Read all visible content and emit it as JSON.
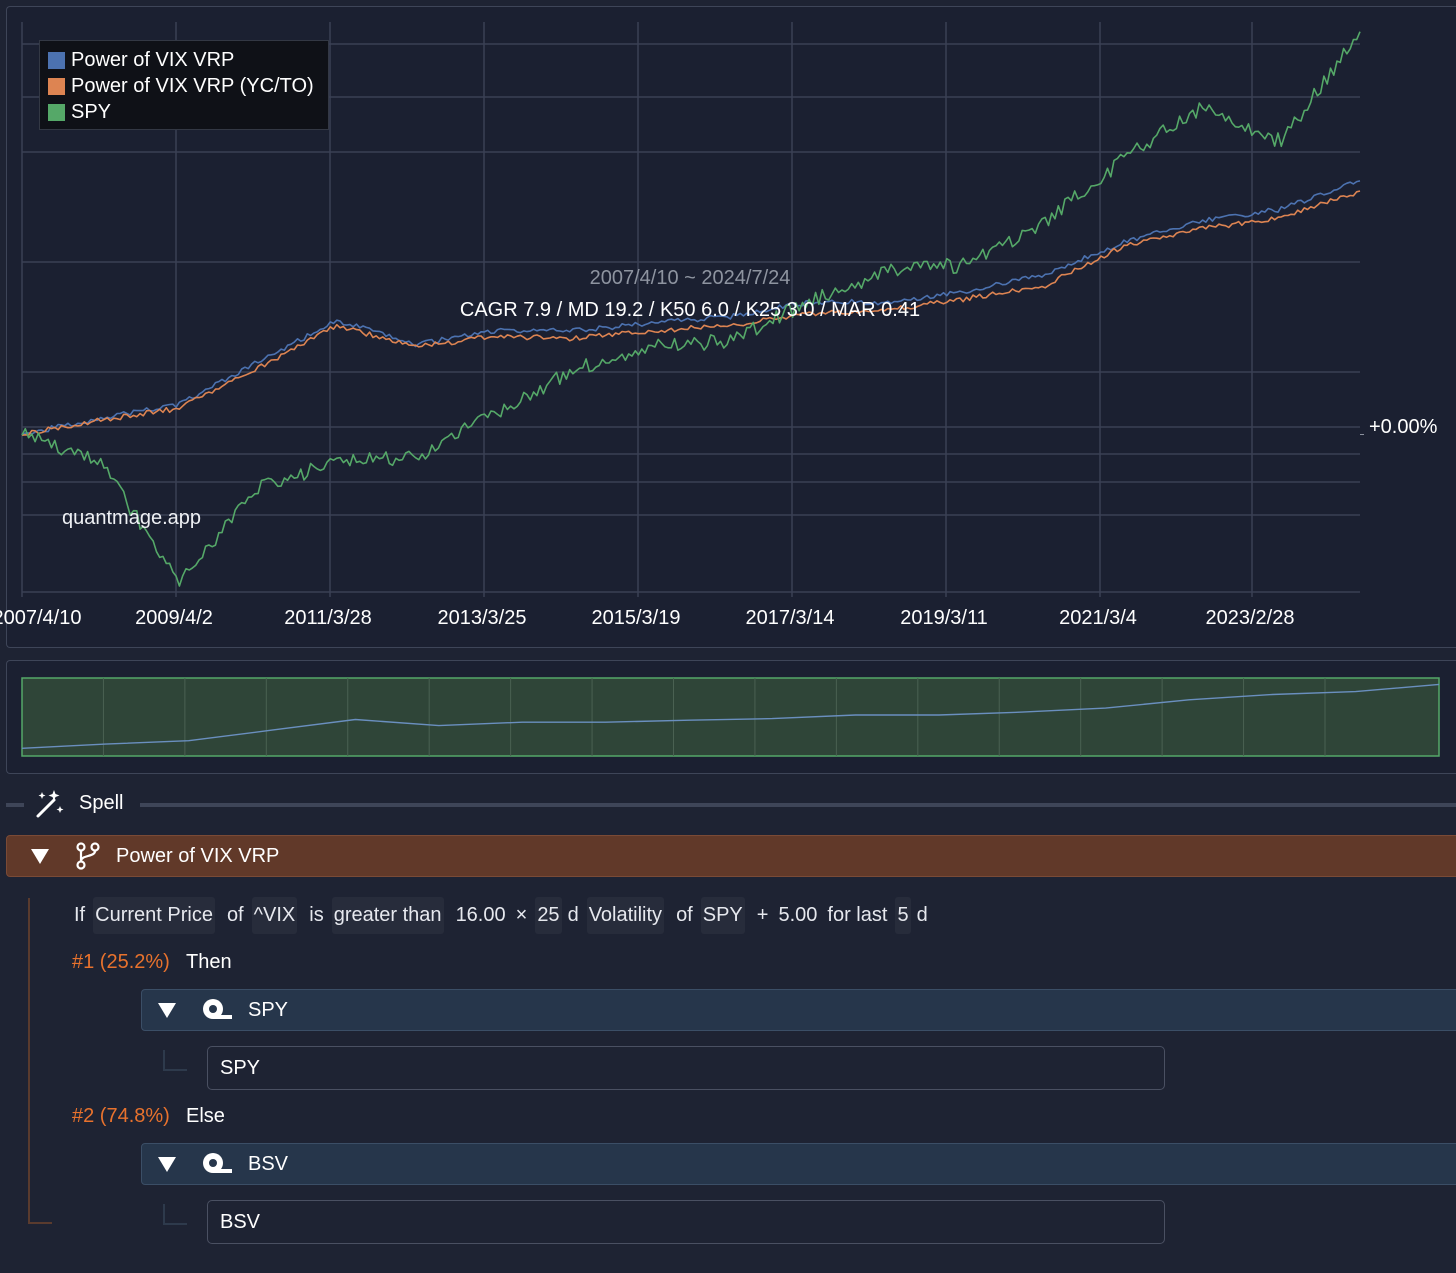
{
  "chart": {
    "legend": [
      {
        "name": "Power of VIX VRP",
        "color": "#4c72b0"
      },
      {
        "name": "Power of VIX VRP (YC/TO)",
        "color": "#dd8452"
      },
      {
        "name": "SPY",
        "color": "#55a868"
      }
    ],
    "date_range": "2007/4/10 ~ 2024/7/24",
    "stats": "CAGR 7.9 / MD 19.2 / K50 6.0 / K25 3.0 / MAR 0.41",
    "watermark": "quantmage.app",
    "y_label": "+0.00%",
    "x_ticks": [
      "2007/4/10",
      "2009/4/2",
      "2011/3/28",
      "2013/3/25",
      "2015/3/19",
      "2017/3/14",
      "2019/3/11",
      "2021/3/4",
      "2023/2/28"
    ]
  },
  "chart_data": {
    "type": "line",
    "title": "",
    "y_scale": "log",
    "x": [
      "2007/4/10",
      "2008/3/1",
      "2009/3/1",
      "2010/3/1",
      "2011/4/1",
      "2012/1/1",
      "2013/1/1",
      "2014/1/1",
      "2015/1/1",
      "2016/1/1",
      "2017/1/1",
      "2018/1/1",
      "2019/1/1",
      "2020/3/1",
      "2021/1/1",
      "2022/1/1",
      "2023/1/1",
      "2024/7/24"
    ],
    "series": [
      {
        "name": "Power of VIX VRP",
        "color": "#4c72b0",
        "values": [
          1.0,
          1.08,
          1.15,
          1.4,
          1.7,
          1.52,
          1.62,
          1.62,
          1.68,
          1.73,
          1.85,
          1.85,
          1.95,
          2.1,
          2.45,
          2.7,
          2.85,
          3.25
        ]
      },
      {
        "name": "Power of VIX VRP (YC/TO)",
        "color": "#dd8452",
        "values": [
          1.0,
          1.07,
          1.13,
          1.36,
          1.66,
          1.5,
          1.58,
          1.56,
          1.62,
          1.66,
          1.75,
          1.78,
          1.88,
          2.0,
          2.4,
          2.6,
          2.75,
          3.1
        ]
      },
      {
        "name": "SPY",
        "color": "#55a868",
        "values": [
          1.0,
          0.88,
          0.5,
          0.78,
          0.88,
          0.9,
          1.1,
          1.35,
          1.5,
          1.55,
          1.85,
          2.15,
          2.2,
          2.7,
          3.6,
          4.6,
          3.9,
          6.5
        ]
      }
    ]
  },
  "navigator": {
    "fill_color": "#2f4538",
    "border_color": "#55a868"
  },
  "spell": {
    "label": "Spell",
    "icon": "magic-wand-icon"
  },
  "strategy": {
    "name": "Power of VIX VRP",
    "icon": "branch-icon",
    "condition": {
      "if": "If",
      "metric": "Current Price",
      "of1": "of",
      "ticker1": "^VIX",
      "is": "is",
      "comparator": "greater than",
      "multiplier": "16.00",
      "times": "×",
      "window": "25",
      "window_unit": "d",
      "indicator": "Volatility",
      "of2": "of",
      "ticker2": "SPY",
      "plus": "+",
      "offset": "5.00",
      "for_last": "for last",
      "days": "5",
      "days_unit": "d"
    },
    "branches": [
      {
        "pct": "#1 (25.2%)",
        "keyword": "Then",
        "asset_header": "SPY",
        "asset": "SPY"
      },
      {
        "pct": "#2 (74.8%)",
        "keyword": "Else",
        "asset_header": "BSV",
        "asset": "BSV"
      }
    ]
  }
}
